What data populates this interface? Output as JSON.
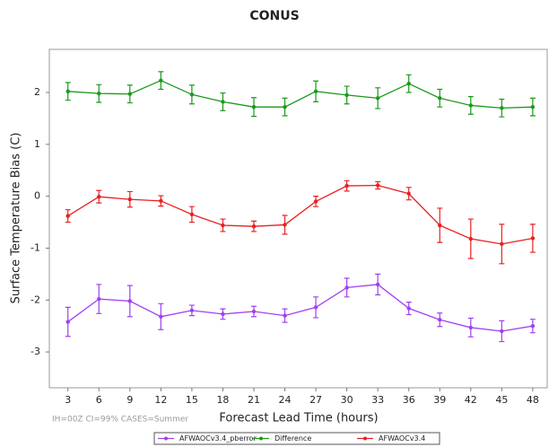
{
  "chart_data": {
    "type": "line",
    "title": "CONUS",
    "x_label": "Forecast Lead Time (hours)",
    "y_label": "Surface Temperature Bias (C)",
    "note": "IH=00Z CI=99% CASES=Summer",
    "x": [
      3,
      6,
      9,
      12,
      15,
      18,
      21,
      24,
      27,
      30,
      33,
      36,
      39,
      42,
      45,
      48
    ],
    "xlim": [
      1.2,
      49.4
    ],
    "xticks": [
      3,
      6,
      9,
      12,
      15,
      18,
      21,
      24,
      27,
      30,
      33,
      36,
      39,
      42,
      45,
      48
    ],
    "ylim": [
      -3.69,
      2.83
    ],
    "yticks": [
      -3,
      -2,
      -1,
      0,
      1,
      2
    ],
    "legend": "bottom",
    "series": [
      {
        "name": "AFWAOCv3.4_pberror",
        "color": "#a040f0",
        "values": [
          -2.42,
          -1.98,
          -2.02,
          -2.32,
          -2.2,
          -2.27,
          -2.22,
          -2.3,
          -2.14,
          -1.76,
          -1.7,
          -2.16,
          -2.38,
          -2.53,
          -2.6,
          -2.5
        ],
        "errors": [
          0.28,
          0.28,
          0.3,
          0.25,
          0.1,
          0.1,
          0.1,
          0.13,
          0.2,
          0.18,
          0.2,
          0.12,
          0.13,
          0.18,
          0.2,
          0.13
        ]
      },
      {
        "name": "Difference",
        "color": "#1a9a1a",
        "values": [
          2.02,
          1.98,
          1.97,
          2.23,
          1.96,
          1.82,
          1.72,
          1.72,
          2.02,
          1.95,
          1.89,
          2.17,
          1.89,
          1.75,
          1.7,
          1.72
        ],
        "errors": [
          0.17,
          0.17,
          0.17,
          0.17,
          0.18,
          0.17,
          0.18,
          0.17,
          0.2,
          0.17,
          0.2,
          0.17,
          0.17,
          0.17,
          0.17,
          0.17
        ]
      },
      {
        "name": "AFWAOCv3.4",
        "color": "#e82020",
        "values": [
          -0.38,
          -0.01,
          -0.06,
          -0.09,
          -0.35,
          -0.56,
          -0.58,
          -0.55,
          -0.1,
          0.2,
          0.21,
          0.05,
          -0.56,
          -0.82,
          -0.92,
          -0.81
        ],
        "errors": [
          0.12,
          0.12,
          0.15,
          0.1,
          0.15,
          0.12,
          0.1,
          0.18,
          0.1,
          0.1,
          0.07,
          0.12,
          0.33,
          0.38,
          0.38,
          0.27
        ]
      }
    ]
  }
}
